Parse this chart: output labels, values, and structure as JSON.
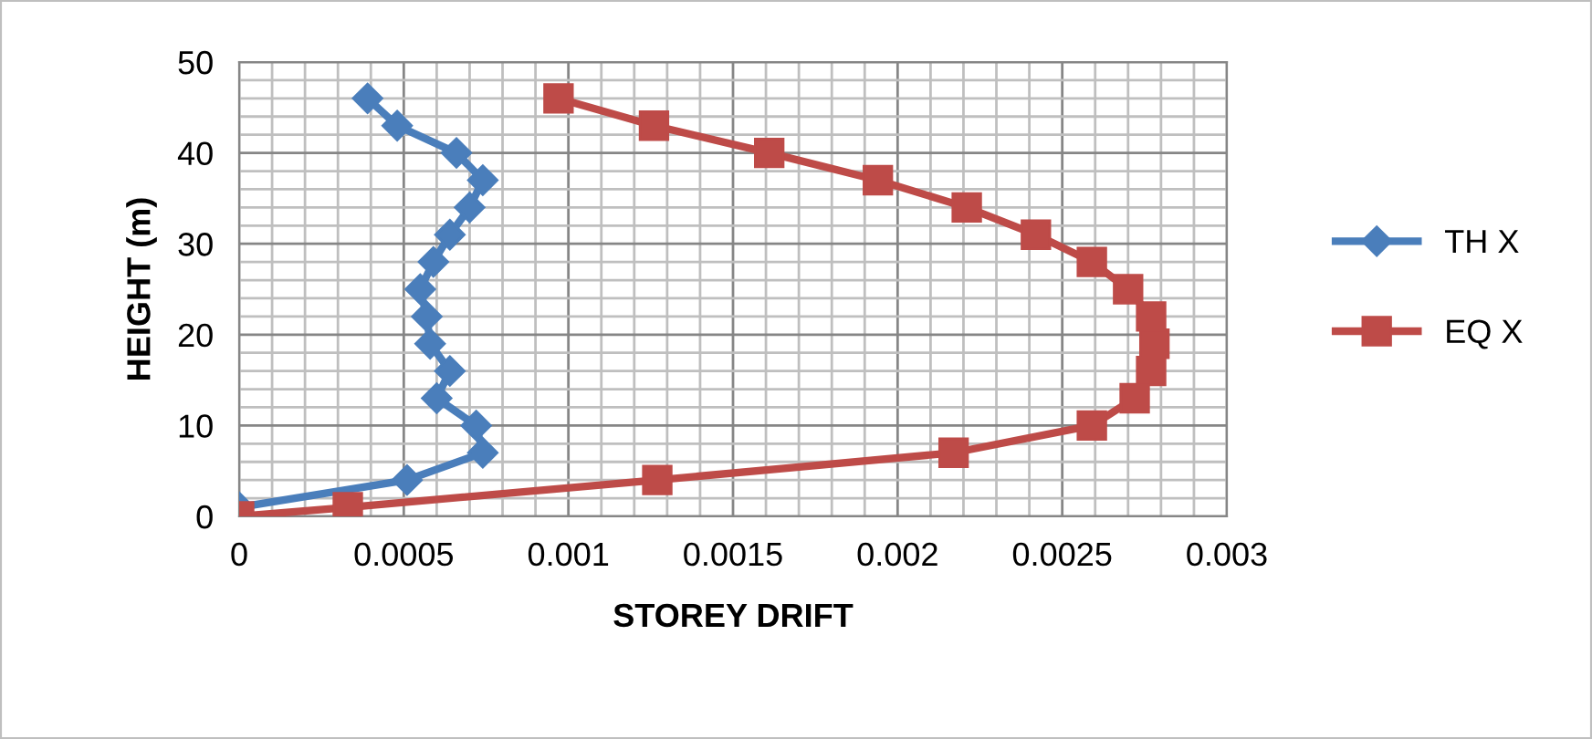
{
  "chart_data": {
    "type": "line",
    "xlabel": "STOREY DRIFT",
    "ylabel": "HEIGHT (m)",
    "xlim": [
      0,
      0.003
    ],
    "xticks": [
      0,
      0.0005,
      0.001,
      0.0015,
      0.002,
      0.0025,
      0.003
    ],
    "ylim": [
      0,
      50
    ],
    "yticks": [
      0,
      10,
      20,
      30,
      40,
      50
    ],
    "grid": true,
    "legend": "right",
    "series": [
      {
        "name": "TH X",
        "color": "#4a7ebb",
        "marker": "diamond",
        "x": [
          0,
          0.00051,
          0.00074,
          0.00072,
          0.0006,
          0.00064,
          0.00058,
          0.00057,
          0.00055,
          0.00059,
          0.00064,
          0.0007,
          0.00074,
          0.00066,
          0.00048,
          0.00039
        ],
        "values": [
          1,
          4,
          7,
          10,
          13,
          16,
          19,
          22,
          25,
          28,
          31,
          34,
          37,
          40,
          43,
          46
        ]
      },
      {
        "name": "EQ X",
        "color": "#be4b48",
        "marker": "square",
        "x": [
          0,
          0.00033,
          0.00127,
          0.00217,
          0.00259,
          0.00272,
          0.00277,
          0.00278,
          0.00277,
          0.0027,
          0.00259,
          0.00242,
          0.00221,
          0.00194,
          0.00161,
          0.00126,
          0.00097
        ],
        "values": [
          0,
          1,
          4,
          7,
          10,
          13,
          16,
          19,
          22,
          25,
          28,
          31,
          34,
          37,
          40,
          43,
          46
        ]
      }
    ]
  }
}
